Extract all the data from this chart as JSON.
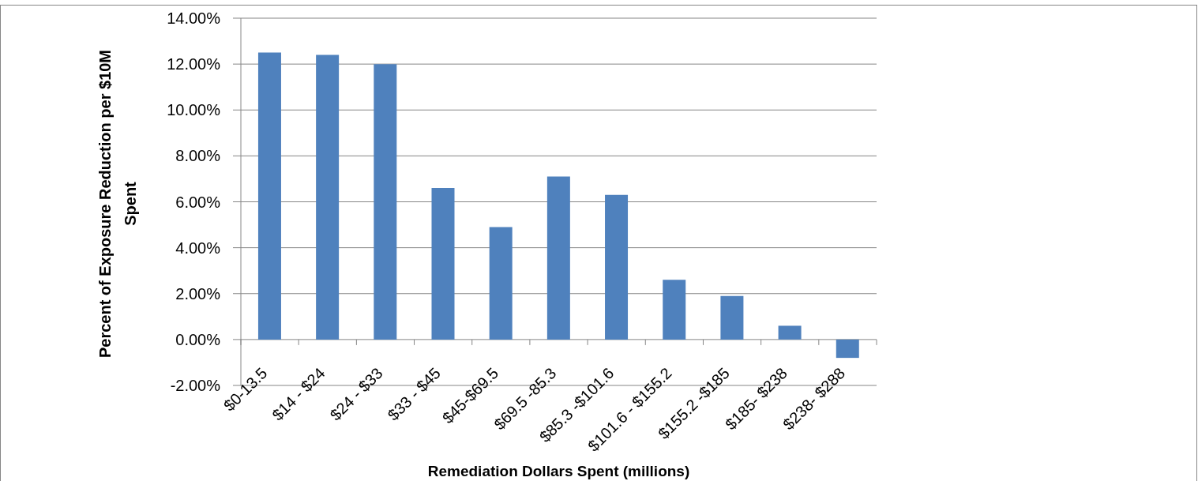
{
  "chart_data": {
    "type": "bar",
    "xlabel": "Remediation Dollars Spent (millions)",
    "ylabel": "Percent of Exposure Reduction per $10M Spent",
    "categories": [
      "$0-13.5",
      "$14 - $24",
      "$24 - $33",
      "$33 - $45",
      "$45-$69.5",
      "$69.5 -85.3",
      "$85.3 -$101.6",
      "$101.6 - $155.2",
      "$155.2 -$185",
      "$185- $238",
      "$238- $288"
    ],
    "values": [
      12.5,
      12.4,
      12.0,
      6.6,
      4.9,
      7.1,
      6.3,
      2.6,
      1.9,
      0.6,
      -0.8
    ],
    "color": "#4f81bd",
    "ylim": [
      -2,
      14
    ],
    "yticks": [
      {
        "value": -2,
        "label": "-2.00%"
      },
      {
        "value": 0,
        "label": "0.00%"
      },
      {
        "value": 2,
        "label": "2.00%"
      },
      {
        "value": 4,
        "label": "4.00%"
      },
      {
        "value": 6,
        "label": "6.00%"
      },
      {
        "value": 8,
        "label": "8.00%"
      },
      {
        "value": 10,
        "label": "10.00%"
      },
      {
        "value": 12,
        "label": "12.00%"
      },
      {
        "value": 14,
        "label": "14.00%"
      }
    ],
    "grid": "y"
  }
}
